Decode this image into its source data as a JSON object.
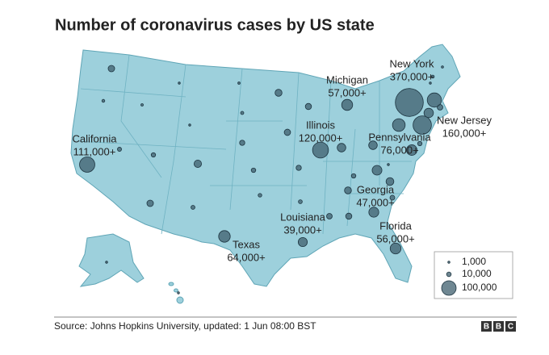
{
  "title": "Number of coronavirus cases by US state",
  "states": [
    {
      "name": "New York",
      "cases": 370000,
      "label": "370,000+"
    },
    {
      "name": "Michigan",
      "cases": 57000,
      "label": "57,000+"
    },
    {
      "name": "New Jersey",
      "cases": 160000,
      "label": "160,000+"
    },
    {
      "name": "Illinois",
      "cases": 120000,
      "label": "120,000+"
    },
    {
      "name": "Pennsylvania",
      "cases": 76000,
      "label": "76,000+"
    },
    {
      "name": "California",
      "cases": 111000,
      "label": "111,000+"
    },
    {
      "name": "Georgia",
      "cases": 47000,
      "label": "47,000+"
    },
    {
      "name": "Louisiana",
      "cases": 39000,
      "label": "39,000+"
    },
    {
      "name": "Florida",
      "cases": 56000,
      "label": "56,000+"
    },
    {
      "name": "Texas",
      "cases": 64000,
      "label": "64,000+"
    }
  ],
  "other_cases": [
    20000,
    4000,
    2800,
    500,
    900,
    8000,
    9000,
    26000,
    20000,
    7500,
    2500,
    4800,
    13000,
    9500,
    6400,
    23000,
    19000,
    13000,
    7000,
    18000,
    35000,
    35000,
    9500,
    23000,
    15000,
    18000,
    11000,
    29000,
    45000,
    2000,
    53000,
    9000,
    42000,
    15000,
    96000,
    1000,
    4400,
    2300,
    400,
    600
  ],
  "legend": [
    {
      "value": 1000,
      "label": "1,000"
    },
    {
      "value": 10000,
      "label": "10,000"
    },
    {
      "value": 100000,
      "label": "100,000"
    }
  ],
  "source": "Source: Johns Hopkins University, updated: 1 Jun 08:00 BST",
  "logo": [
    "B",
    "B",
    "C"
  ]
}
